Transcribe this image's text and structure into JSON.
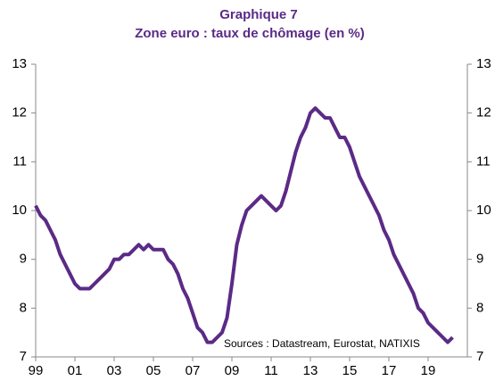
{
  "chart_data": {
    "type": "line",
    "title": "Graphique 7",
    "subtitle": "Zone euro : taux de chômage (en %)",
    "annotation": "Sources : Datastream, Eurostat, NATIXIS",
    "color": "#5b2a86",
    "x": [
      1999.0,
      1999.25,
      1999.5,
      1999.75,
      2000.0,
      2000.25,
      2000.5,
      2000.75,
      2001.0,
      2001.25,
      2001.5,
      2001.75,
      2002.0,
      2002.25,
      2002.5,
      2002.75,
      2003.0,
      2003.25,
      2003.5,
      2003.75,
      2004.0,
      2004.25,
      2004.5,
      2004.75,
      2005.0,
      2005.25,
      2005.5,
      2005.75,
      2006.0,
      2006.25,
      2006.5,
      2006.75,
      2007.0,
      2007.25,
      2007.5,
      2007.75,
      2008.0,
      2008.25,
      2008.5,
      2008.75,
      2009.0,
      2009.25,
      2009.5,
      2009.75,
      2010.0,
      2010.25,
      2010.5,
      2010.75,
      2011.0,
      2011.25,
      2011.5,
      2011.75,
      2012.0,
      2012.25,
      2012.5,
      2012.75,
      2013.0,
      2013.25,
      2013.5,
      2013.75,
      2014.0,
      2014.25,
      2014.5,
      2014.75,
      2015.0,
      2015.25,
      2015.5,
      2015.75,
      2016.0,
      2016.25,
      2016.5,
      2016.75,
      2017.0,
      2017.25,
      2017.5,
      2017.75,
      2018.0,
      2018.25,
      2018.5,
      2018.75,
      2019.0,
      2019.25,
      2019.5,
      2019.75,
      2020.0,
      2020.25
    ],
    "values": [
      10.1,
      9.9,
      9.8,
      9.6,
      9.4,
      9.1,
      8.9,
      8.7,
      8.5,
      8.4,
      8.4,
      8.4,
      8.5,
      8.6,
      8.7,
      8.8,
      9.0,
      9.0,
      9.1,
      9.1,
      9.2,
      9.3,
      9.2,
      9.3,
      9.2,
      9.2,
      9.2,
      9.0,
      8.9,
      8.7,
      8.4,
      8.2,
      7.9,
      7.6,
      7.5,
      7.3,
      7.3,
      7.4,
      7.5,
      7.8,
      8.5,
      9.3,
      9.7,
      10.0,
      10.1,
      10.2,
      10.3,
      10.2,
      10.1,
      10.0,
      10.1,
      10.4,
      10.8,
      11.2,
      11.5,
      11.7,
      12.0,
      12.1,
      12.0,
      11.9,
      11.9,
      11.7,
      11.5,
      11.5,
      11.3,
      11.0,
      10.7,
      10.5,
      10.3,
      10.1,
      9.9,
      9.6,
      9.4,
      9.1,
      8.9,
      8.7,
      8.5,
      8.3,
      8.0,
      7.9,
      7.7,
      7.6,
      7.5,
      7.4,
      7.3,
      7.4
    ],
    "xlim": [
      1999,
      2021
    ],
    "xticks": [
      {
        "value": 1999,
        "label": "99"
      },
      {
        "value": 2001,
        "label": "01"
      },
      {
        "value": 2003,
        "label": "03"
      },
      {
        "value": 2005,
        "label": "05"
      },
      {
        "value": 2007,
        "label": "07"
      },
      {
        "value": 2009,
        "label": "09"
      },
      {
        "value": 2011,
        "label": "11"
      },
      {
        "value": 2013,
        "label": "13"
      },
      {
        "value": 2015,
        "label": "15"
      },
      {
        "value": 2017,
        "label": "17"
      },
      {
        "value": 2019,
        "label": "19"
      }
    ],
    "ylim": [
      7,
      13
    ],
    "yticks": [
      7,
      8,
      9,
      10,
      11,
      12,
      13
    ],
    "y2lim": [
      7,
      13
    ],
    "y2ticks": [
      7,
      8,
      9,
      10,
      11,
      12,
      13
    ]
  }
}
